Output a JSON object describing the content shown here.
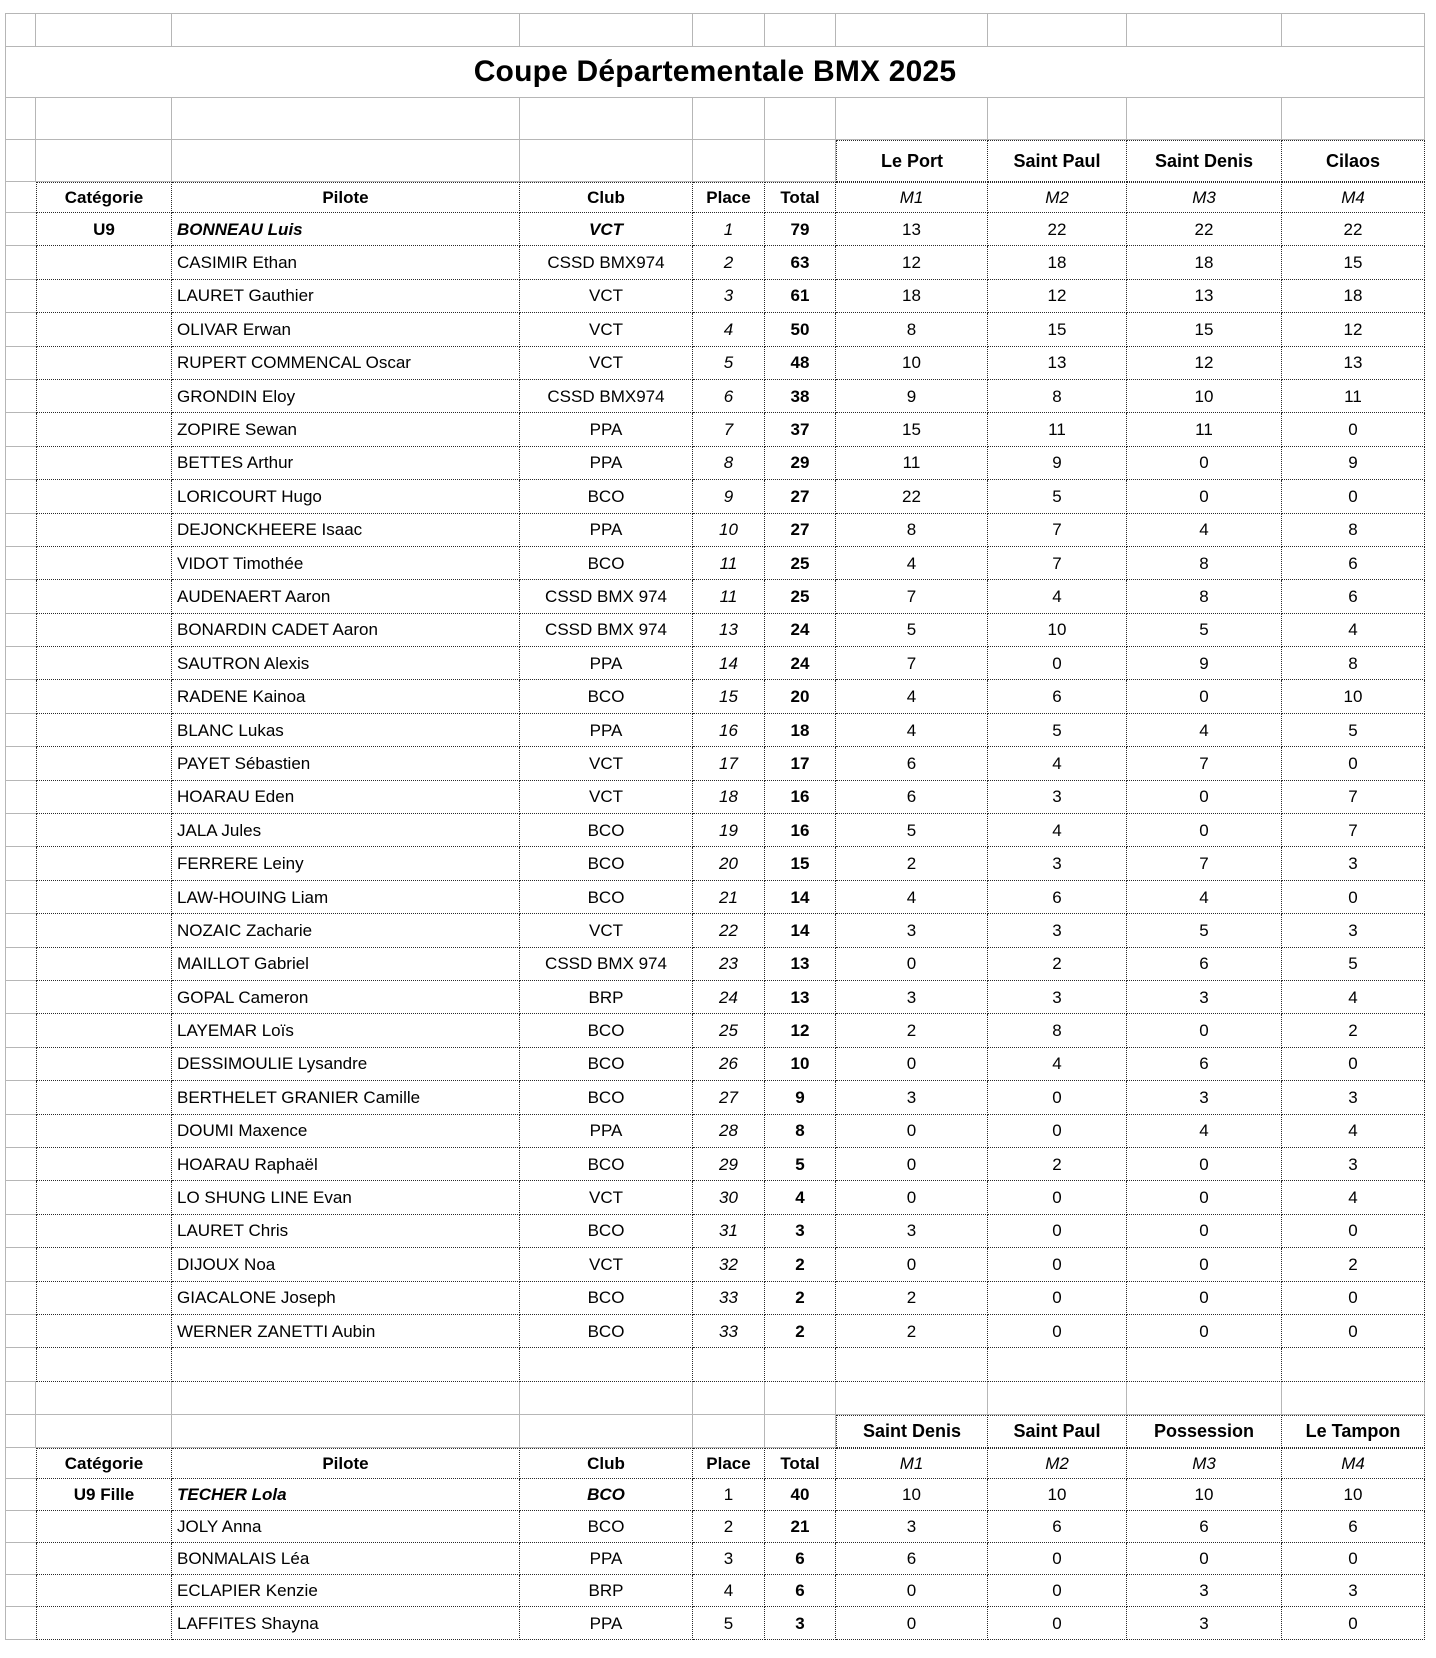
{
  "title": "Coupe Départementale BMX 2025",
  "column_headers": {
    "category": "Catégorie",
    "pilot": "Pilote",
    "club": "Club",
    "place": "Place",
    "total": "Total",
    "manches": [
      "M1",
      "M2",
      "M3",
      "M4"
    ]
  },
  "sections": [
    {
      "venues": [
        "Le Port",
        "Saint Paul",
        "Saint Denis",
        "Cilaos"
      ],
      "rows": [
        {
          "category": "U9",
          "pilot": "BONNEAU Luis",
          "club": "VCT",
          "place": "1",
          "total": "79",
          "m": [
            13,
            22,
            22,
            22
          ],
          "leader": true
        },
        {
          "category": "",
          "pilot": "CASIMIR Ethan",
          "club": "CSSD BMX974",
          "place": "2",
          "total": "63",
          "m": [
            12,
            18,
            18,
            15
          ]
        },
        {
          "category": "",
          "pilot": "LAURET Gauthier",
          "club": "VCT",
          "place": "3",
          "total": "61",
          "m": [
            18,
            12,
            13,
            18
          ]
        },
        {
          "category": "",
          "pilot": "OLIVAR Erwan",
          "club": "VCT",
          "place": "4",
          "total": "50",
          "m": [
            8,
            15,
            15,
            12
          ]
        },
        {
          "category": "",
          "pilot": "RUPERT COMMENCAL Oscar",
          "club": "VCT",
          "place": "5",
          "total": "48",
          "m": [
            10,
            13,
            12,
            13
          ]
        },
        {
          "category": "",
          "pilot": "GRONDIN Eloy",
          "club": "CSSD BMX974",
          "place": "6",
          "total": "38",
          "m": [
            9,
            8,
            10,
            11
          ]
        },
        {
          "category": "",
          "pilot": "ZOPIRE Sewan",
          "club": "PPA",
          "place": "7",
          "total": "37",
          "m": [
            15,
            11,
            11,
            0
          ]
        },
        {
          "category": "",
          "pilot": "BETTES Arthur",
          "club": "PPA",
          "place": "8",
          "total": "29",
          "m": [
            11,
            9,
            0,
            9
          ]
        },
        {
          "category": "",
          "pilot": "LORICOURT Hugo",
          "club": "BCO",
          "place": "9",
          "total": "27",
          "m": [
            22,
            5,
            0,
            0
          ]
        },
        {
          "category": "",
          "pilot": "DEJONCKHEERE Isaac",
          "club": "PPA",
          "place": "10",
          "total": "27",
          "m": [
            8,
            7,
            4,
            8
          ]
        },
        {
          "category": "",
          "pilot": "VIDOT Timothée",
          "club": "BCO",
          "place": "11",
          "total": "25",
          "m": [
            4,
            7,
            8,
            6
          ]
        },
        {
          "category": "",
          "pilot": "AUDENAERT Aaron",
          "club": "CSSD BMX 974",
          "place": "11",
          "total": "25",
          "m": [
            7,
            4,
            8,
            6
          ]
        },
        {
          "category": "",
          "pilot": "BONARDIN CADET Aaron",
          "club": "CSSD BMX 974",
          "place": "13",
          "total": "24",
          "m": [
            5,
            10,
            5,
            4
          ]
        },
        {
          "category": "",
          "pilot": "SAUTRON Alexis",
          "club": "PPA",
          "place": "14",
          "total": "24",
          "m": [
            7,
            0,
            9,
            8
          ]
        },
        {
          "category": "",
          "pilot": "RADENE Kainoa",
          "club": "BCO",
          "place": "15",
          "total": "20",
          "m": [
            4,
            6,
            0,
            10
          ]
        },
        {
          "category": "",
          "pilot": "BLANC Lukas",
          "club": "PPA",
          "place": "16",
          "total": "18",
          "m": [
            4,
            5,
            4,
            5
          ]
        },
        {
          "category": "",
          "pilot": "PAYET Sébastien",
          "club": "VCT",
          "place": "17",
          "total": "17",
          "m": [
            6,
            4,
            7,
            0
          ]
        },
        {
          "category": "",
          "pilot": "HOARAU Eden",
          "club": "VCT",
          "place": "18",
          "total": "16",
          "m": [
            6,
            3,
            0,
            7
          ]
        },
        {
          "category": "",
          "pilot": "JALA Jules",
          "club": "BCO",
          "place": "19",
          "total": "16",
          "m": [
            5,
            4,
            0,
            7
          ]
        },
        {
          "category": "",
          "pilot": "FERRERE Leiny",
          "club": "BCO",
          "place": "20",
          "total": "15",
          "m": [
            2,
            3,
            7,
            3
          ]
        },
        {
          "category": "",
          "pilot": "LAW-HOUING Liam",
          "club": "BCO",
          "place": "21",
          "total": "14",
          "m": [
            4,
            6,
            4,
            0
          ]
        },
        {
          "category": "",
          "pilot": "NOZAIC Zacharie",
          "club": "VCT",
          "place": "22",
          "total": "14",
          "m": [
            3,
            3,
            5,
            3
          ]
        },
        {
          "category": "",
          "pilot": "MAILLOT Gabriel",
          "club": "CSSD BMX 974",
          "place": "23",
          "total": "13",
          "m": [
            0,
            2,
            6,
            5
          ]
        },
        {
          "category": "",
          "pilot": "GOPAL Cameron",
          "club": "BRP",
          "place": "24",
          "total": "13",
          "m": [
            3,
            3,
            3,
            4
          ]
        },
        {
          "category": "",
          "pilot": "LAYEMAR Loïs",
          "club": "BCO",
          "place": "25",
          "total": "12",
          "m": [
            2,
            8,
            0,
            2
          ]
        },
        {
          "category": "",
          "pilot": "DESSIMOULIE Lysandre",
          "club": "BCO",
          "place": "26",
          "total": "10",
          "m": [
            0,
            4,
            6,
            0
          ]
        },
        {
          "category": "",
          "pilot": "BERTHELET GRANIER Camille",
          "club": "BCO",
          "place": "27",
          "total": "9",
          "m": [
            3,
            0,
            3,
            3
          ]
        },
        {
          "category": "",
          "pilot": "DOUMI Maxence",
          "club": "PPA",
          "place": "28",
          "total": "8",
          "m": [
            0,
            0,
            4,
            4
          ]
        },
        {
          "category": "",
          "pilot": "HOARAU Raphaël",
          "club": "BCO",
          "place": "29",
          "total": "5",
          "m": [
            0,
            2,
            0,
            3
          ]
        },
        {
          "category": "",
          "pilot": "LO SHUNG LINE Evan",
          "club": "VCT",
          "place": "30",
          "total": "4",
          "m": [
            0,
            0,
            0,
            4
          ]
        },
        {
          "category": "",
          "pilot": "LAURET Chris",
          "club": "BCO",
          "place": "31",
          "total": "3",
          "m": [
            3,
            0,
            0,
            0
          ]
        },
        {
          "category": "",
          "pilot": "DIJOUX Noa",
          "club": "VCT",
          "place": "32",
          "total": "2",
          "m": [
            0,
            0,
            0,
            2
          ]
        },
        {
          "category": "",
          "pilot": "GIACALONE Joseph",
          "club": "BCO",
          "place": "33",
          "total": "2",
          "m": [
            2,
            0,
            0,
            0
          ]
        },
        {
          "category": "",
          "pilot": "WERNER ZANETTI Aubin",
          "club": "BCO",
          "place": "33",
          "total": "2",
          "m": [
            2,
            0,
            0,
            0
          ]
        }
      ]
    },
    {
      "venues": [
        "Saint Denis",
        "Saint Paul",
        "Possession",
        "Le Tampon"
      ],
      "rows": [
        {
          "category": "U9 Fille",
          "pilot": "TECHER Lola",
          "club": "BCO",
          "place": "1",
          "total": "40",
          "m": [
            10,
            10,
            10,
            10
          ],
          "leader": true
        },
        {
          "category": "",
          "pilot": "JOLY Anna",
          "club": "BCO",
          "place": "2",
          "total": "21",
          "m": [
            3,
            6,
            6,
            6
          ]
        },
        {
          "category": "",
          "pilot": "BONMALAIS Léa",
          "club": "PPA",
          "place": "3",
          "total": "6",
          "m": [
            6,
            0,
            0,
            0
          ]
        },
        {
          "category": "",
          "pilot": "ECLAPIER Kenzie",
          "club": "BRP",
          "place": "4",
          "total": "6",
          "m": [
            0,
            0,
            3,
            3
          ]
        },
        {
          "category": "",
          "pilot": "LAFFITES Shayna",
          "club": "PPA",
          "place": "5",
          "total": "3",
          "m": [
            0,
            0,
            3,
            0
          ]
        }
      ]
    }
  ]
}
